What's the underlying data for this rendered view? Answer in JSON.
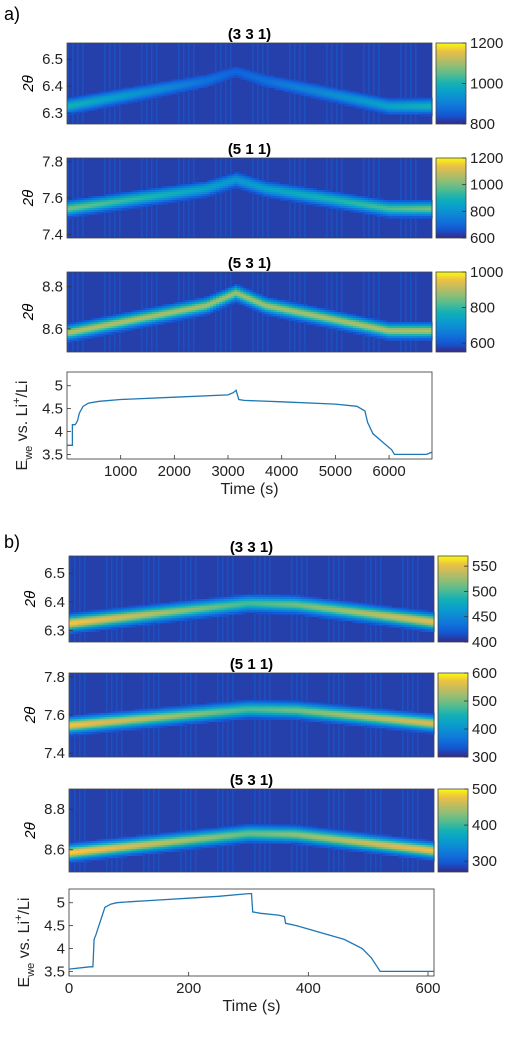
{
  "panel_labels": [
    "a)",
    "b)"
  ],
  "chart_data": [
    {
      "type": "heatmap",
      "panel": "a)",
      "title": "(3 3 1)",
      "ylabel": "2θ",
      "xlim": [
        0,
        6800
      ],
      "ylim": [
        6.26,
        6.56
      ],
      "yticks": [
        6.3,
        6.4,
        6.5
      ],
      "ytick_labels": [
        "6.3",
        "6.4",
        "6.5"
      ],
      "colorbar": {
        "range": [
          800,
          1200
        ],
        "ticks": [
          800,
          1000,
          1200
        ],
        "labels": [
          "800",
          "1000",
          "1200"
        ]
      },
      "peak_center": [
        [
          0,
          6.325
        ],
        [
          2600,
          6.42
        ],
        [
          3150,
          6.455
        ],
        [
          3700,
          6.42
        ],
        [
          6000,
          6.325
        ],
        [
          6800,
          6.325
        ]
      ],
      "peak_intensity": [
        [
          0,
          1000
        ],
        [
          3150,
          860
        ],
        [
          6800,
          1000
        ]
      ]
    },
    {
      "type": "heatmap",
      "panel": "a)",
      "title": "(5 1 1)",
      "ylabel": "2θ",
      "xlim": [
        0,
        6800
      ],
      "ylim": [
        7.38,
        7.82
      ],
      "yticks": [
        7.4,
        7.6,
        7.8
      ],
      "ytick_labels": [
        "7.4",
        "7.6",
        "7.8"
      ],
      "colorbar": {
        "range": [
          600,
          1200
        ],
        "ticks": [
          600,
          800,
          1000,
          1200
        ],
        "labels": [
          "600",
          "800",
          "1000",
          "1200"
        ]
      },
      "peak_center": [
        [
          0,
          7.54
        ],
        [
          2600,
          7.65
        ],
        [
          3150,
          7.7
        ],
        [
          3700,
          7.65
        ],
        [
          6000,
          7.54
        ],
        [
          6800,
          7.54
        ]
      ],
      "peak_intensity": [
        [
          0,
          1000
        ],
        [
          3150,
          820
        ],
        [
          6800,
          1000
        ]
      ]
    },
    {
      "type": "heatmap",
      "panel": "a)",
      "title": "(5 3 1)",
      "ylabel": "2θ",
      "xlim": [
        0,
        6800
      ],
      "ylim": [
        8.49,
        8.87
      ],
      "yticks": [
        8.6,
        8.8
      ],
      "ytick_labels": [
        "8.6",
        "8.8"
      ],
      "colorbar": {
        "range": [
          550,
          1000
        ],
        "ticks": [
          600,
          800,
          1000
        ],
        "labels": [
          "600",
          "800",
          "1000"
        ]
      },
      "peak_center": [
        [
          0,
          8.58
        ],
        [
          2600,
          8.71
        ],
        [
          3150,
          8.77
        ],
        [
          3700,
          8.71
        ],
        [
          6000,
          8.59
        ],
        [
          6800,
          8.59
        ]
      ],
      "peak_intensity": [
        [
          0,
          900
        ],
        [
          3150,
          880
        ],
        [
          6800,
          900
        ]
      ]
    },
    {
      "type": "line",
      "panel": "a)",
      "xlabel": "Time (s)",
      "ylabel": "E_we vs. Li+/Li",
      "xlim": [
        0,
        6800
      ],
      "ylim": [
        3.4,
        5.3
      ],
      "xticks": [
        1000,
        2000,
        3000,
        4000,
        5000,
        6000
      ],
      "xtick_labels": [
        "1000",
        "2000",
        "3000",
        "4000",
        "5000",
        "6000"
      ],
      "yticks": [
        3.5,
        4,
        4.5,
        5
      ],
      "ytick_labels": [
        "3.5",
        "4",
        "4.5",
        "5"
      ],
      "series": [
        {
          "x": [
            0,
            100,
            100,
            150,
            180,
            200,
            230,
            300,
            400,
            600,
            1000,
            2000,
            3000,
            3100,
            3150,
            3200,
            3300,
            4000,
            5000,
            5400,
            5550,
            5600,
            5700,
            5900,
            6050,
            6100,
            6700,
            6800
          ],
          "y": [
            3.7,
            3.7,
            4.15,
            4.15,
            4.2,
            4.25,
            4.4,
            4.55,
            4.62,
            4.66,
            4.7,
            4.75,
            4.8,
            4.85,
            4.9,
            4.7,
            4.68,
            4.65,
            4.6,
            4.55,
            4.45,
            4.2,
            3.95,
            3.75,
            3.6,
            3.5,
            3.5,
            3.55
          ]
        }
      ]
    },
    {
      "type": "heatmap",
      "panel": "b)",
      "title": "(3 3 1)",
      "ylabel": "2θ",
      "xlim": [
        0,
        610
      ],
      "ylim": [
        6.26,
        6.56
      ],
      "yticks": [
        6.3,
        6.4,
        6.5
      ],
      "ytick_labels": [
        "6.3",
        "6.4",
        "6.5"
      ],
      "colorbar": {
        "range": [
          400,
          570
        ],
        "ticks": [
          400,
          450,
          500,
          550
        ],
        "labels": [
          "400",
          "450",
          "500",
          "550"
        ]
      },
      "peak_center": [
        [
          0,
          6.325
        ],
        [
          300,
          6.395
        ],
        [
          380,
          6.39
        ],
        [
          610,
          6.33
        ]
      ],
      "peak_intensity": [
        [
          0,
          560
        ],
        [
          300,
          500
        ],
        [
          610,
          550
        ]
      ]
    },
    {
      "type": "heatmap",
      "panel": "b)",
      "title": "(5 1 1)",
      "ylabel": "2θ",
      "xlim": [
        0,
        610
      ],
      "ylim": [
        7.38,
        7.82
      ],
      "yticks": [
        7.4,
        7.6,
        7.8
      ],
      "ytick_labels": [
        "7.4",
        "7.6",
        "7.8"
      ],
      "colorbar": {
        "range": [
          300,
          600
        ],
        "ticks": [
          300,
          400,
          500,
          600
        ],
        "labels": [
          "300",
          "400",
          "500",
          "600"
        ]
      },
      "peak_center": [
        [
          0,
          7.545
        ],
        [
          300,
          7.63
        ],
        [
          380,
          7.625
        ],
        [
          610,
          7.555
        ]
      ],
      "peak_intensity": [
        [
          0,
          580
        ],
        [
          300,
          480
        ],
        [
          610,
          560
        ]
      ]
    },
    {
      "type": "heatmap",
      "panel": "b)",
      "title": "(5 3 1)",
      "ylabel": "2θ",
      "xlim": [
        0,
        610
      ],
      "ylim": [
        8.49,
        8.9
      ],
      "yticks": [
        8.6,
        8.8
      ],
      "ytick_labels": [
        "8.6",
        "8.8"
      ],
      "colorbar": {
        "range": [
          270,
          500
        ],
        "ticks": [
          300,
          400,
          500
        ],
        "labels": [
          "300",
          "400",
          "500"
        ]
      },
      "peak_center": [
        [
          0,
          8.585
        ],
        [
          300,
          8.68
        ],
        [
          380,
          8.675
        ],
        [
          610,
          8.595
        ]
      ],
      "peak_intensity": [
        [
          0,
          490
        ],
        [
          300,
          420
        ],
        [
          610,
          480
        ]
      ]
    },
    {
      "type": "line",
      "panel": "b)",
      "xlabel": "Time (s)",
      "ylabel": "E_we vs. Li+/Li",
      "xlim": [
        0,
        610
      ],
      "ylim": [
        3.4,
        5.3
      ],
      "xticks": [
        0,
        200,
        400,
        600
      ],
      "xtick_labels": [
        "0",
        "200",
        "400",
        "600"
      ],
      "yticks": [
        3.5,
        4,
        4.5,
        5
      ],
      "ytick_labels": [
        "3.5",
        "4",
        "4.5",
        "5"
      ],
      "series": [
        {
          "x": [
            0,
            35,
            40,
            42,
            45,
            50,
            55,
            60,
            70,
            80,
            100,
            150,
            200,
            250,
            300,
            305,
            307,
            320,
            350,
            360,
            362,
            380,
            420,
            460,
            490,
            505,
            515,
            520,
            560,
            610
          ],
          "y": [
            3.55,
            3.6,
            3.6,
            4.2,
            4.3,
            4.5,
            4.7,
            4.9,
            4.97,
            5.0,
            5.02,
            5.06,
            5.1,
            5.14,
            5.2,
            5.2,
            4.8,
            4.77,
            4.73,
            4.7,
            4.55,
            4.5,
            4.35,
            4.2,
            4.0,
            3.8,
            3.6,
            3.5,
            3.5,
            3.5
          ]
        }
      ]
    }
  ]
}
